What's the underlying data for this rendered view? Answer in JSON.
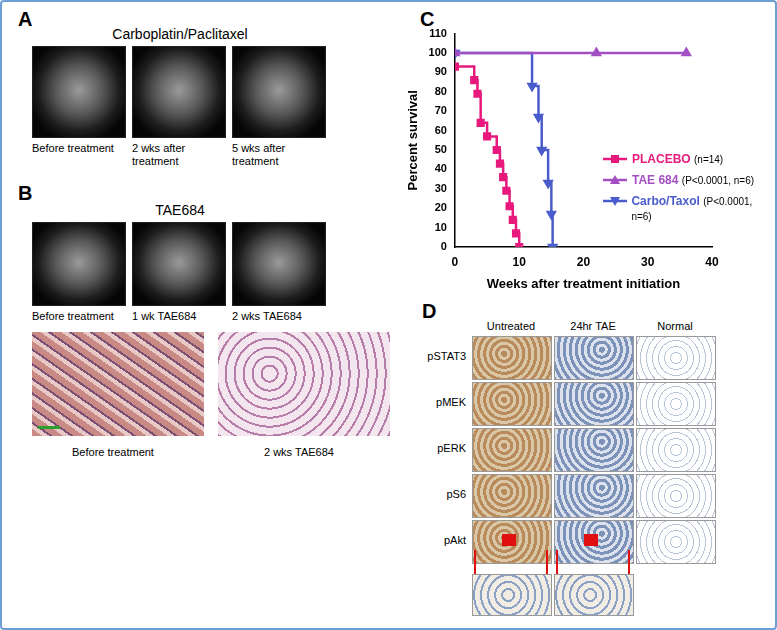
{
  "panels": {
    "A": {
      "label": "A",
      "title": "Carboplatin/Paclitaxel",
      "captions": [
        "Before treatment",
        "2 wks after treatment",
        "5 wks after treatment"
      ]
    },
    "B": {
      "label": "B",
      "title": "TAE684",
      "captions": [
        "Before treatment",
        "1 wk TAE684",
        "2 wks TAE684"
      ],
      "histology_captions": [
        "Before treatment",
        "2 wks TAE684"
      ]
    },
    "C": {
      "label": "C"
    },
    "D": {
      "label": "D",
      "columns": [
        "Untreated",
        "24hr TAE",
        "Normal"
      ],
      "rows": [
        "pSTAT3",
        "pMEK",
        "pERK",
        "pS6",
        "pAkt"
      ]
    }
  },
  "chart_data": {
    "type": "line",
    "x_label": "Weeks after treatment initiation",
    "y_label": "Percent survival",
    "xlim": [
      0,
      40
    ],
    "xticks": [
      0,
      10,
      20,
      30,
      40
    ],
    "ylim": [
      0,
      110
    ],
    "yticks": [
      0,
      10,
      20,
      30,
      40,
      50,
      60,
      70,
      80,
      90,
      100,
      110
    ],
    "grid": false,
    "legend": "right",
    "series": [
      {
        "name": "PLACEBO",
        "label_note": "(n=14)",
        "color": "#e8197c",
        "marker": "square",
        "line_style": "step",
        "x": [
          0,
          3,
          3.5,
          4,
          5,
          6.5,
          7,
          7.5,
          8,
          8.5,
          9,
          9.5,
          10
        ],
        "values": [
          93,
          86,
          79,
          64,
          57,
          50,
          43,
          36,
          29,
          21,
          14,
          7,
          0
        ]
      },
      {
        "name": "TAE 684",
        "label_note": "(P<0.0001, n=6)",
        "color": "#a34fc4",
        "marker": "triangle-up",
        "line_style": "step",
        "x": [
          0,
          22,
          36
        ],
        "values": [
          100,
          100,
          100
        ]
      },
      {
        "name": "Carbo/Taxol",
        "label_note": "(P<0.0001, n=6)",
        "color": "#4a5ccc",
        "marker": "triangle-down",
        "line_style": "step",
        "x": [
          0,
          12,
          13,
          13.5,
          14.5,
          15,
          15.2
        ],
        "values": [
          100,
          83,
          67,
          50,
          33,
          17,
          0
        ]
      }
    ]
  }
}
